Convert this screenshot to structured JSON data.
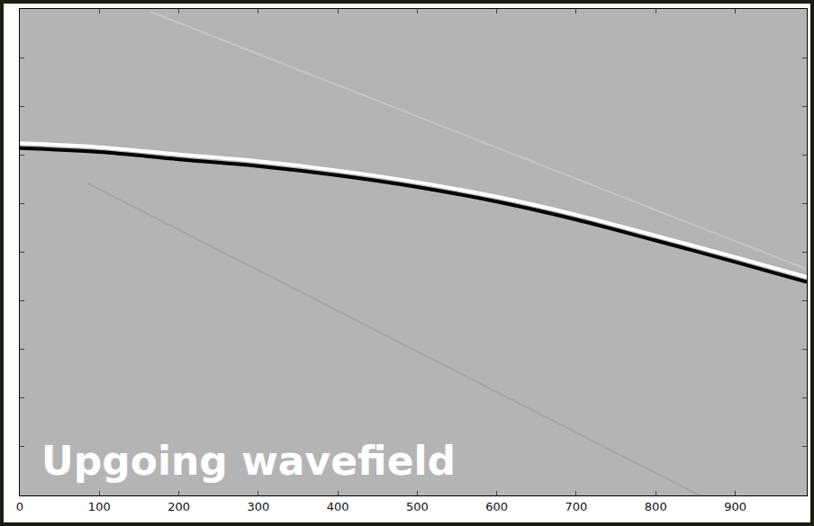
{
  "chart_data": {
    "type": "line",
    "annotations": [
      "Upgoing wavefield"
    ],
    "xlim": [
      0,
      990
    ],
    "xticks": [
      0,
      100,
      200,
      300,
      400,
      500,
      600,
      700,
      800,
      900
    ],
    "ylim": [
      0,
      10
    ],
    "yticks": [
      0,
      1,
      2,
      3,
      4,
      5,
      6,
      7,
      8,
      9,
      10
    ],
    "tick_labels": "x",
    "grid": false,
    "series": [
      {
        "color": "#c6c6c6",
        "x": [
          165,
          990
        ],
        "values": [
          9.94,
          4.65
        ]
      },
      {
        "color": "#a4a4a4",
        "x": [
          86,
          855
        ],
        "values": [
          6.41,
          0.0
        ]
      },
      {
        "color": "#ffffff",
        "x": [
          0,
          100,
          200,
          300,
          400,
          500,
          600,
          700,
          800,
          900,
          990
        ],
        "values": [
          7.24,
          7.16,
          7.01,
          6.87,
          6.68,
          6.44,
          6.14,
          5.77,
          5.34,
          4.9,
          4.49
        ]
      },
      {
        "color": "#000000",
        "x": [
          0,
          100,
          200,
          300,
          400,
          500,
          600,
          700,
          800,
          900,
          990
        ],
        "values": [
          7.14,
          7.06,
          6.91,
          6.77,
          6.58,
          6.34,
          6.04,
          5.67,
          5.24,
          4.8,
          4.39
        ]
      }
    ]
  }
}
